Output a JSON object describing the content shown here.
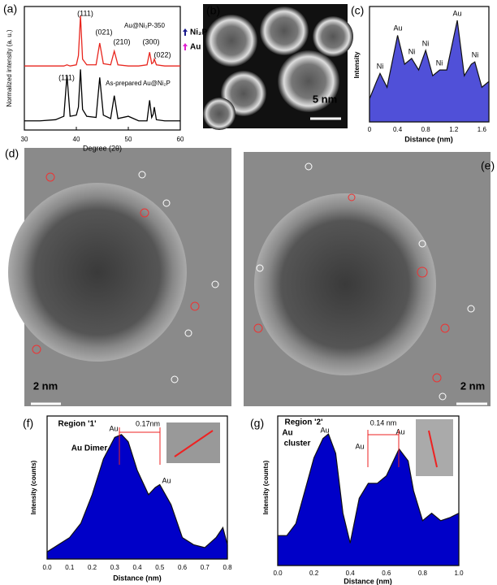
{
  "chart_data": [
    {
      "type": "line",
      "panel": "(a)",
      "x_label": "Degree (2θ)",
      "y_label": "Normalized intensity (a. u.)",
      "x": [
        30,
        33,
        36,
        37.6,
        38.2,
        38.8,
        40,
        40.4,
        40.8,
        41.2,
        42,
        43.8,
        44.5,
        45.2,
        46.6,
        47.3,
        48,
        50,
        52,
        53.6,
        54.1,
        54.5,
        54.8,
        55.0,
        55.4,
        57,
        60
      ],
      "series": [
        {
          "name": "Au@Ni₂P-350",
          "color": "#e8261e",
          "values": [
            0.56,
            0.56,
            0.56,
            0.56,
            0.57,
            0.56,
            0.57,
            0.65,
            1.0,
            0.62,
            0.57,
            0.57,
            0.76,
            0.58,
            0.57,
            0.69,
            0.57,
            0.56,
            0.56,
            0.57,
            0.68,
            0.58,
            0.59,
            0.62,
            0.57,
            0.56,
            0.56
          ]
        },
        {
          "name": "As-prepared Au@Ni₂P",
          "color": "#000000",
          "values": [
            0.08,
            0.08,
            0.09,
            0.12,
            0.48,
            0.12,
            0.13,
            0.2,
            0.53,
            0.18,
            0.12,
            0.11,
            0.46,
            0.13,
            0.1,
            0.3,
            0.1,
            0.12,
            0.08,
            0.08,
            0.26,
            0.11,
            0.14,
            0.2,
            0.09,
            0.08,
            0.08
          ]
        }
      ],
      "legend": [
        {
          "name": "Ni₂P",
          "color": "#1a1a8c"
        },
        {
          "name": "Au",
          "color": "#e020d0"
        }
      ],
      "annotations": [
        "(111)",
        "(021)",
        "(210)",
        "(300)",
        "(022)",
        "(111)"
      ],
      "xlim": [
        30,
        60
      ],
      "ylim": [
        0,
        1.08
      ],
      "xticks": [
        30,
        40,
        50,
        60
      ]
    },
    {
      "type": "area",
      "panel": "(c)",
      "x_label": "Distance (nm)",
      "y_label": "Intensity",
      "color": "#5050d8",
      "x": [
        0,
        0.1,
        0.15,
        0.25,
        0.4,
        0.5,
        0.6,
        0.7,
        0.8,
        0.9,
        1.0,
        1.1,
        1.25,
        1.35,
        1.45,
        1.5,
        1.6,
        1.7
      ],
      "values": [
        0.2,
        0.35,
        0.42,
        0.3,
        0.75,
        0.5,
        0.55,
        0.45,
        0.62,
        0.4,
        0.45,
        0.45,
        0.88,
        0.4,
        0.5,
        0.52,
        0.3,
        0.35
      ],
      "annotations": [
        "Ni",
        "Au",
        "Ni",
        "Ni",
        "Ni",
        "Au",
        "Ni"
      ],
      "xlim": [
        0,
        1.7
      ],
      "ylim": [
        0,
        1
      ],
      "xticks": [
        0,
        0.4,
        0.8,
        1.2,
        1.6
      ]
    },
    {
      "type": "area",
      "panel": "(f)",
      "x_label": "Distance (nm)",
      "y_label": "Intensity (counts)",
      "color": "#0000c8",
      "x": [
        0,
        0.05,
        0.1,
        0.15,
        0.2,
        0.25,
        0.3,
        0.33,
        0.36,
        0.4,
        0.45,
        0.48,
        0.5,
        0.55,
        0.6,
        0.65,
        0.7,
        0.75,
        0.78,
        0.8
      ],
      "values": [
        0.05,
        0.1,
        0.15,
        0.25,
        0.45,
        0.7,
        0.85,
        0.87,
        0.82,
        0.62,
        0.45,
        0.5,
        0.52,
        0.38,
        0.15,
        0.1,
        0.08,
        0.15,
        0.22,
        0.1
      ],
      "annotations": [
        "Region '1'",
        "Au Dimer",
        "Au",
        "Au",
        "0.17nm"
      ],
      "xlim": [
        0,
        0.8
      ],
      "ylim": [
        0,
        1
      ],
      "xticks": [
        {
          "value": 0,
          "label": "0.0"
        },
        0.1,
        0.2,
        0.3,
        0.4,
        0.5,
        0.6,
        0.7,
        0.8
      ]
    },
    {
      "type": "area",
      "panel": "(g)",
      "x_label": "Distance (nm)",
      "y_label": "Intensity (counts)",
      "color": "#0000c8",
      "x": [
        0,
        0.05,
        0.1,
        0.15,
        0.2,
        0.25,
        0.28,
        0.32,
        0.36,
        0.4,
        0.45,
        0.5,
        0.55,
        0.6,
        0.67,
        0.72,
        0.75,
        0.8,
        0.85,
        0.9,
        0.95,
        1.0
      ],
      "values": [
        0.2,
        0.2,
        0.28,
        0.5,
        0.72,
        0.85,
        0.88,
        0.75,
        0.35,
        0.15,
        0.45,
        0.55,
        0.55,
        0.6,
        0.78,
        0.7,
        0.5,
        0.3,
        0.35,
        0.3,
        0.32,
        0.35
      ],
      "annotations": [
        "Region '2'",
        "Au",
        "cluster",
        "Au",
        "Au",
        "Au",
        "0.14 nm"
      ],
      "xlim": [
        0,
        1.0
      ],
      "ylim": [
        0,
        1
      ],
      "xticks": [
        {
          "value": 0,
          "label": "0.0"
        },
        0.2,
        0.4,
        0.6,
        0.8,
        {
          "value": 1.0,
          "label": "1.0"
        }
      ]
    }
  ],
  "images": [
    {
      "panel": "(b)",
      "scale_bar": "5 nm"
    },
    {
      "panel": "(d)",
      "scale_bar": "2 nm"
    },
    {
      "panel": "(e)",
      "scale_bar": "2 nm"
    }
  ]
}
